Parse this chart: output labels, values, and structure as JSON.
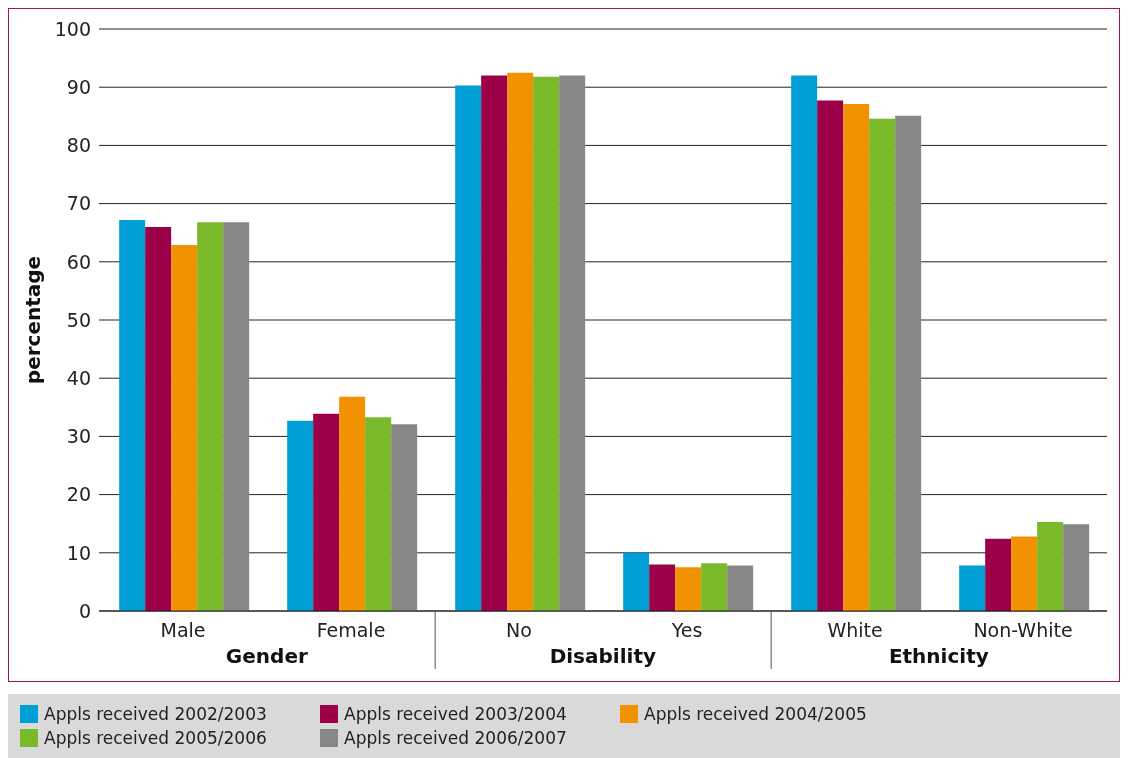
{
  "chart_data": {
    "type": "bar",
    "ylabel": "percentage",
    "categories": [
      "Male",
      "Female",
      "No",
      "Yes",
      "White",
      "Non-White"
    ],
    "annotations": [
      "Gender",
      "Disability",
      "Ethnicity"
    ],
    "series": [
      {
        "name": "Appls received 2002/2003",
        "color": "#00a0d6",
        "values": [
          67.2,
          32.7,
          90.3,
          10,
          92,
          7.8
        ]
      },
      {
        "name": "Appls received 2003/2004",
        "color": "#9b0049",
        "values": [
          66,
          33.9,
          92,
          8,
          87.7,
          12.4
        ]
      },
      {
        "name": "Appls received 2004/2005",
        "color": "#f39200",
        "values": [
          62.9,
          36.8,
          92.5,
          7.5,
          87.1,
          12.8
        ]
      },
      {
        "name": "Appls received 2005/2006",
        "color": "#7ab929",
        "values": [
          66.8,
          33.3,
          91.8,
          8.2,
          84.6,
          15.3
        ]
      },
      {
        "name": "Appls received 2006/2007",
        "color": "#878787",
        "values": [
          66.8,
          32.1,
          92,
          7.8,
          85.1,
          14.9
        ]
      }
    ],
    "ylim": [
      0,
      100
    ],
    "yticks": [
      0,
      10,
      20,
      30,
      40,
      50,
      60,
      70,
      80,
      90,
      100
    ],
    "grid": "y",
    "legend": "bottom"
  }
}
